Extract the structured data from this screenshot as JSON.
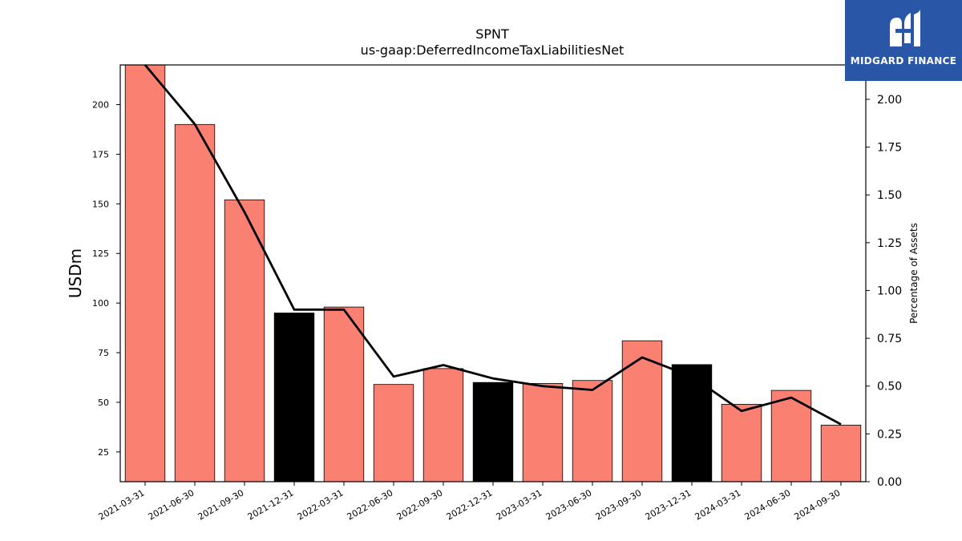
{
  "chart_data": {
    "type": "bar",
    "title": "SPNT",
    "subtitle": "us-gaap:DeferredIncomeTaxLiabilitiesNet",
    "ylabel": "USDm",
    "y2label": "Percentage of Assets",
    "categories": [
      "2021-03-31",
      "2021-06-30",
      "2021-09-30",
      "2021-12-31",
      "2022-03-31",
      "2022-06-30",
      "2022-09-30",
      "2022-12-31",
      "2023-03-31",
      "2023-06-30",
      "2023-09-30",
      "2023-12-31",
      "2024-03-31",
      "2024-06-30",
      "2024-09-30"
    ],
    "series": [
      {
        "type": "bar",
        "values": [
          220,
          190,
          152,
          95,
          98,
          59,
          67,
          60,
          59.5,
          61,
          81,
          69,
          49,
          56,
          38.5
        ],
        "colors": [
          "#fa8072",
          "#fa8072",
          "#fa8072",
          "#000000",
          "#fa8072",
          "#fa8072",
          "#fa8072",
          "#000000",
          "#fa8072",
          "#fa8072",
          "#fa8072",
          "#000000",
          "#fa8072",
          "#fa8072",
          "#fa8072"
        ]
      },
      {
        "type": "line",
        "axis": "right",
        "values": [
          2.18,
          1.87,
          1.41,
          0.9,
          0.9,
          0.55,
          0.61,
          0.54,
          0.5,
          0.48,
          0.65,
          0.55,
          0.37,
          0.44,
          0.3
        ],
        "color": "#000000"
      }
    ],
    "ylim": [
      10,
      220
    ],
    "y2lim": [
      0,
      2.18
    ],
    "yticks": [
      25,
      50,
      75,
      100,
      125,
      150,
      175,
      200
    ],
    "y2ticks": [
      "0.00",
      "0.25",
      "0.50",
      "0.75",
      "1.00",
      "1.25",
      "1.50",
      "1.75",
      "2.00"
    ],
    "grid": false
  },
  "logo": {
    "text": "MIDGARD FINANCE"
  }
}
